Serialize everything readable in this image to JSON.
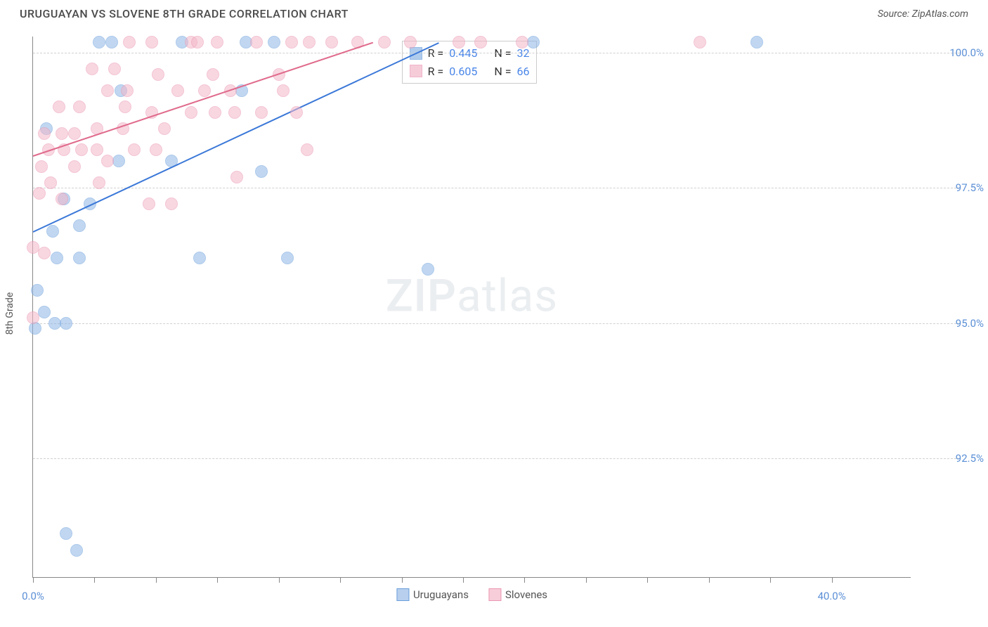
{
  "header": {
    "title": "URUGUAYAN VS SLOVENE 8TH GRADE CORRELATION CHART",
    "source": "Source: ZipAtlas.com"
  },
  "chart": {
    "type": "scatter",
    "ylabel": "8th Grade",
    "background_color": "#ffffff",
    "grid_color": "#d0d0d0",
    "axis_color": "#888888",
    "marker_radius": 9,
    "marker_opacity": 0.55,
    "line_width": 2,
    "xlim": [
      0,
      40
    ],
    "ylim": [
      90.3,
      100.3
    ],
    "xticks": [
      0,
      2.8,
      5.6,
      8.4,
      11.2,
      14.0,
      16.8,
      19.6,
      22.4,
      25.2,
      28.0,
      30.8,
      33.6,
      36.4
    ],
    "xtick_labels": {
      "0": "0.0%",
      "36.4": "40.0%"
    },
    "yticks": [
      92.5,
      95.0,
      97.5,
      100.0
    ],
    "ytick_labels": [
      "92.5%",
      "95.0%",
      "97.5%",
      "100.0%"
    ],
    "series": [
      {
        "name": "Uruguayans",
        "color": "#8fb7e6",
        "stroke": "#6a9edb",
        "line_color": "#3b78d8",
        "R": "0.445",
        "N": "32",
        "trend": {
          "x1": 0,
          "y1": 96.7,
          "x2": 18.5,
          "y2": 100.2
        },
        "points": [
          [
            3.0,
            100.2
          ],
          [
            3.6,
            100.2
          ],
          [
            6.8,
            100.2
          ],
          [
            9.7,
            100.2
          ],
          [
            11.0,
            100.2
          ],
          [
            22.8,
            100.2
          ],
          [
            33.0,
            100.2
          ],
          [
            4.0,
            99.3
          ],
          [
            9.5,
            99.3
          ],
          [
            0.6,
            98.6
          ],
          [
            3.9,
            98.0
          ],
          [
            6.3,
            98.0
          ],
          [
            10.4,
            97.8
          ],
          [
            1.4,
            97.3
          ],
          [
            2.6,
            97.2
          ],
          [
            2.1,
            96.8
          ],
          [
            0.9,
            96.7
          ],
          [
            1.1,
            96.2
          ],
          [
            2.1,
            96.2
          ],
          [
            7.6,
            96.2
          ],
          [
            11.6,
            96.2
          ],
          [
            18.0,
            96.0
          ],
          [
            0.2,
            95.6
          ],
          [
            0.5,
            95.2
          ],
          [
            1.0,
            95.0
          ],
          [
            1.5,
            95.0
          ],
          [
            0.1,
            94.9
          ],
          [
            1.5,
            91.1
          ],
          [
            2.0,
            90.8
          ]
        ]
      },
      {
        "name": "Slovenes",
        "color": "#f3b7c9",
        "stroke": "#eb97b1",
        "line_color": "#e06a8c",
        "R": "0.605",
        "N": "66",
        "trend": {
          "x1": 0,
          "y1": 98.1,
          "x2": 15.5,
          "y2": 100.2
        },
        "points": [
          [
            4.4,
            100.2
          ],
          [
            5.4,
            100.2
          ],
          [
            7.2,
            100.2
          ],
          [
            7.5,
            100.2
          ],
          [
            8.4,
            100.2
          ],
          [
            10.2,
            100.2
          ],
          [
            11.8,
            100.2
          ],
          [
            12.6,
            100.2
          ],
          [
            13.6,
            100.2
          ],
          [
            14.8,
            100.2
          ],
          [
            16.0,
            100.2
          ],
          [
            17.2,
            100.2
          ],
          [
            19.4,
            100.2
          ],
          [
            20.4,
            100.2
          ],
          [
            22.3,
            100.2
          ],
          [
            30.4,
            100.2
          ],
          [
            2.7,
            99.7
          ],
          [
            3.7,
            99.7
          ],
          [
            5.7,
            99.6
          ],
          [
            8.2,
            99.6
          ],
          [
            11.2,
            99.6
          ],
          [
            3.4,
            99.3
          ],
          [
            4.3,
            99.3
          ],
          [
            6.6,
            99.3
          ],
          [
            7.8,
            99.3
          ],
          [
            9.0,
            99.3
          ],
          [
            11.4,
            99.3
          ],
          [
            1.2,
            99.0
          ],
          [
            2.1,
            99.0
          ],
          [
            4.2,
            99.0
          ],
          [
            5.4,
            98.9
          ],
          [
            7.2,
            98.9
          ],
          [
            8.3,
            98.9
          ],
          [
            9.2,
            98.9
          ],
          [
            10.4,
            98.9
          ],
          [
            12.0,
            98.9
          ],
          [
            0.5,
            98.5
          ],
          [
            1.3,
            98.5
          ],
          [
            1.9,
            98.5
          ],
          [
            2.9,
            98.6
          ],
          [
            4.1,
            98.6
          ],
          [
            6.0,
            98.6
          ],
          [
            0.7,
            98.2
          ],
          [
            1.4,
            98.2
          ],
          [
            2.2,
            98.2
          ],
          [
            2.9,
            98.2
          ],
          [
            4.6,
            98.2
          ],
          [
            5.6,
            98.2
          ],
          [
            0.4,
            97.9
          ],
          [
            1.9,
            97.9
          ],
          [
            3.4,
            98.0
          ],
          [
            12.5,
            98.2
          ],
          [
            0.8,
            97.6
          ],
          [
            3.0,
            97.6
          ],
          [
            9.3,
            97.7
          ],
          [
            0.3,
            97.4
          ],
          [
            1.3,
            97.3
          ],
          [
            5.3,
            97.2
          ],
          [
            6.3,
            97.2
          ],
          [
            0.0,
            96.4
          ],
          [
            0.5,
            96.3
          ],
          [
            0.0,
            95.1
          ]
        ]
      }
    ],
    "watermark": {
      "heavy": "ZIP",
      "light": "atlas"
    }
  },
  "legend": {
    "items": [
      {
        "label": "Uruguayans",
        "fill": "#b8d0ee",
        "stroke": "#6a9edb"
      },
      {
        "label": "Slovenes",
        "fill": "#f7cdd9",
        "stroke": "#eb97b1"
      }
    ]
  }
}
